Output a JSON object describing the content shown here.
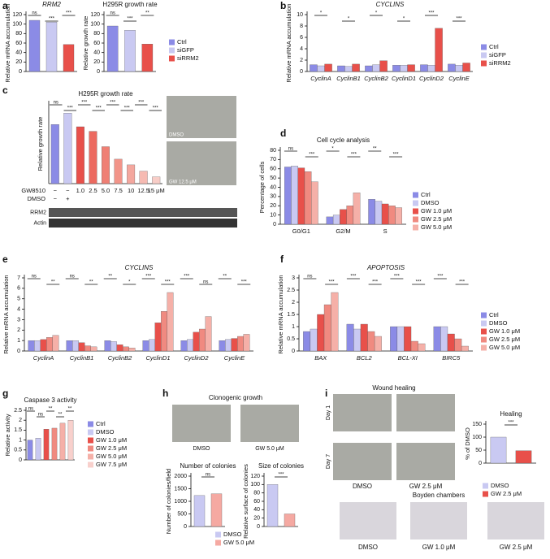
{
  "chart_data": [
    {
      "type": "bar",
      "panel": "a",
      "title": "RRM2",
      "italic_title": true,
      "ylabel": "Relative mRNA accumulation",
      "categories": [
        "Ctrl",
        "siGFP",
        "siRRM2"
      ],
      "values": [
        108,
        104,
        57
      ],
      "colors": [
        "#8b8be6",
        "#c9c9f2",
        "#e8504a"
      ],
      "ylim": [
        0,
        120
      ],
      "yticks": [
        0,
        20,
        40,
        60,
        80,
        100,
        120
      ],
      "annotations": [
        "ns",
        "***",
        "***"
      ]
    },
    {
      "type": "bar",
      "title": "H295R growth rate",
      "ylabel": "Relative growth rate",
      "values": [
        96,
        87,
        58
      ],
      "colors": [
        "#8b8be6",
        "#c9c9f2",
        "#e8504a"
      ],
      "ylim": [
        0,
        120
      ],
      "yticks": [
        0,
        20,
        40,
        60,
        80,
        100,
        120
      ],
      "annotations": [
        "ns",
        "***",
        "**"
      ]
    },
    {
      "type": "bar",
      "panel": "b",
      "title": "CYCLINS",
      "italic_title": true,
      "italic_categories": true,
      "ylabel": "Relative mRNA accumulation",
      "categories": [
        "CyclinA",
        "CyclinB1",
        "CyclinB2",
        "CyclinD1",
        "CyclinD2",
        "CyclinE"
      ],
      "series": [
        {
          "name": "Ctrl",
          "color": "#8b8be6",
          "values": [
            1.2,
            1.0,
            1.0,
            1.1,
            1.2,
            1.3
          ]
        },
        {
          "name": "siGFP",
          "color": "#c9c9f2",
          "values": [
            1.0,
            0.9,
            1.2,
            1.1,
            1.1,
            1.1
          ]
        },
        {
          "name": "siRRM2",
          "color": "#e8504a",
          "values": [
            1.3,
            1.3,
            1.9,
            1.2,
            7.6,
            1.5
          ]
        }
      ],
      "ylim": [
        0,
        10
      ],
      "yticks": [
        0,
        2,
        4,
        6,
        8,
        10
      ],
      "annotations": [
        "*",
        "*",
        "*",
        "*",
        "***",
        "***"
      ]
    },
    {
      "type": "bar",
      "panel": "c",
      "title": "H295R growth rate",
      "ylabel": "Relative growth rate",
      "row_labels": [
        "GW8510",
        "DMSO"
      ],
      "categories": [
        "−",
        "−",
        "1.0",
        "2.5",
        "5.0",
        "7.5",
        "10",
        "12.5",
        "15 μM"
      ],
      "categories2": [
        "−",
        "+",
        null,
        null,
        null,
        null,
        null,
        null,
        null
      ],
      "values": [
        104,
        124,
        100,
        92,
        65,
        43,
        33,
        22,
        12
      ],
      "colors": [
        "#8b8be6",
        "#c9c9f2",
        "#e8504a",
        "#ec6a60",
        "#ef7f74",
        "#f29489",
        "#f4a79e",
        "#f6bab2",
        "#f8cdc7"
      ],
      "ylim": [
        0,
        140
      ],
      "annotations": [
        "ns",
        "***",
        "***",
        "***",
        "***",
        "***",
        "***",
        "***"
      ],
      "images": [
        "DMSO",
        "GW 12.5 μM"
      ],
      "blot": [
        "RRM2",
        "Actin"
      ]
    },
    {
      "type": "bar",
      "panel": "d",
      "title": "Cell cycle analysis",
      "ylabel": "Percentage of cells",
      "categories": [
        "G0/G1",
        "G2/M",
        "S"
      ],
      "series": [
        {
          "name": "Ctrl",
          "color": "#8b8be6",
          "values": [
            62,
            8,
            27
          ]
        },
        {
          "name": "DMSO",
          "color": "#c9c9f2",
          "values": [
            63,
            10,
            25
          ]
        },
        {
          "name": "GW 1.0 μM",
          "color": "#e8504a",
          "values": [
            61,
            16,
            22
          ]
        },
        {
          "name": "GW 2.5 μM",
          "color": "#f08a80",
          "values": [
            57,
            20,
            20
          ]
        },
        {
          "name": "GW 5.0 μM",
          "color": "#f5b0a8",
          "values": [
            46,
            34,
            18
          ]
        }
      ],
      "ylim": [
        0,
        80
      ],
      "yticks": [
        0,
        10,
        20,
        30,
        40,
        50,
        60,
        70,
        80
      ],
      "annotations": [
        "ns",
        "***",
        "*",
        "***",
        "**",
        "***"
      ]
    },
    {
      "type": "bar",
      "panel": "e",
      "title": "CYCLINS",
      "italic_title": true,
      "italic_categories": true,
      "ylabel": "Relative mRNA accumulation",
      "categories": [
        "CyclinA",
        "CyclinB1",
        "CyclinB2",
        "CyclinD1",
        "CyclinD2",
        "CyclinE"
      ],
      "series": [
        {
          "color": "#8b8be6",
          "values": [
            1.0,
            1.0,
            1.0,
            1.0,
            1.0,
            1.0
          ]
        },
        {
          "color": "#c9c9f2",
          "values": [
            1.0,
            1.0,
            0.9,
            1.1,
            1.1,
            1.1
          ]
        },
        {
          "color": "#e8504a",
          "values": [
            1.1,
            0.8,
            0.6,
            2.7,
            1.8,
            1.2
          ]
        },
        {
          "color": "#f08a80",
          "values": [
            1.3,
            0.5,
            0.4,
            3.8,
            2.1,
            1.4
          ]
        },
        {
          "color": "#f5b0a8",
          "values": [
            1.5,
            0.4,
            0.3,
            5.6,
            3.3,
            1.6
          ]
        }
      ],
      "ylim": [
        0,
        7
      ],
      "yticks": [
        0,
        1,
        2,
        3,
        4,
        5,
        6,
        7
      ],
      "annotations": [
        "ns",
        "**",
        "ns",
        "**",
        "**",
        "*",
        "***",
        "***",
        "***",
        "ns",
        "**",
        "***"
      ]
    },
    {
      "type": "bar",
      "panel": "f",
      "title": "APOPTOSIS",
      "italic_title": true,
      "italic_categories": true,
      "ylabel": "Relative mRNA accumulation",
      "categories": [
        "BAX",
        "BCL2",
        "BCL-XI",
        "BIRC5"
      ],
      "series": [
        {
          "name": "Ctrl",
          "color": "#8b8be6",
          "values": [
            0.8,
            1.1,
            1.0,
            1.0
          ]
        },
        {
          "name": "DMSO",
          "color": "#c9c9f2",
          "values": [
            0.9,
            0.9,
            1.0,
            1.0
          ]
        },
        {
          "name": "GW 1.0 μM",
          "color": "#e8504a",
          "values": [
            1.5,
            1.1,
            1.0,
            0.7
          ]
        },
        {
          "name": "GW 2.5 μM",
          "color": "#f08a80",
          "values": [
            1.9,
            0.8,
            0.4,
            0.5
          ]
        },
        {
          "name": "GW 5.0 μM",
          "color": "#f5b0a8",
          "values": [
            2.4,
            0.6,
            0.3,
            0.2
          ]
        }
      ],
      "ylim": [
        0,
        3
      ],
      "yticks": [
        0,
        0.5,
        1,
        1.5,
        2,
        2.5,
        3
      ],
      "annotations": [
        "ns",
        "***",
        "***",
        "***",
        "***",
        "***",
        "***",
        "***"
      ]
    },
    {
      "type": "bar",
      "panel": "g",
      "title": "Caspase 3 activity",
      "ylabel": "Relative activity",
      "categories": [
        "Ctrl",
        "DMSO",
        "GW 1.0 μM",
        "GW 2.5 μM",
        "GW 5.0 μM",
        "GW 7.5 μM"
      ],
      "values": [
        1.0,
        1.1,
        1.55,
        1.6,
        1.85,
        2.0
      ],
      "colors": [
        "#8b8be6",
        "#c9c9f2",
        "#e8504a",
        "#f08a80",
        "#f5b0a8",
        "#f8d0cc"
      ],
      "ylim": [
        0,
        2.5
      ],
      "yticks": [
        0,
        0.5,
        1,
        1.5,
        2,
        2.5
      ],
      "annotations": [
        "ns",
        "ns",
        "**",
        "**",
        "**"
      ]
    },
    {
      "type": "bar",
      "panel": "h",
      "title": "Number of colonies",
      "ylabel": "Number of colonies/field",
      "categories": [
        "DMSO",
        "GW 5.0 μM"
      ],
      "values": [
        1230,
        1300
      ],
      "colors": [
        "#c9c9f2",
        "#f5a9a2"
      ],
      "ylim": [
        0,
        2000
      ],
      "yticks": [
        0,
        500,
        1000,
        1500,
        2000
      ],
      "annotations": [
        "ns"
      ]
    },
    {
      "type": "bar",
      "title": "Size of colonies",
      "ylabel": "Relative surface of colonies",
      "values": [
        100,
        30
      ],
      "colors": [
        "#c9c9f2",
        "#f5a9a2"
      ],
      "ylim": [
        0,
        120
      ],
      "yticks": [
        0,
        20,
        40,
        60,
        80,
        100,
        120
      ],
      "annotations": [
        "***"
      ]
    },
    {
      "type": "bar",
      "panel": "i",
      "title": "Healing",
      "ylabel": "% of DMSO",
      "categories": [
        "DMSO",
        "GW 2.5 μM"
      ],
      "values": [
        100,
        48
      ],
      "colors": [
        "#c9c9f2",
        "#e8504a"
      ],
      "ylim": [
        0,
        150
      ],
      "yticks": [
        0,
        50,
        100,
        150
      ],
      "annotations": [
        "***"
      ]
    }
  ],
  "images": {
    "clonogenic_title": "Clonogenic growth",
    "clonogenic": [
      "DMSO",
      "GW 5.0 μM"
    ],
    "wound_title": "Wound healing",
    "wound_rows": [
      "Day 1",
      "Day 7"
    ],
    "wound_cols": [
      "DMSO",
      "GW 2.5 μM"
    ],
    "boyden_title": "Boyden chambers",
    "boyden": [
      "DMSO",
      "GW 1.0 μM",
      "GW 2.5 μM"
    ]
  }
}
